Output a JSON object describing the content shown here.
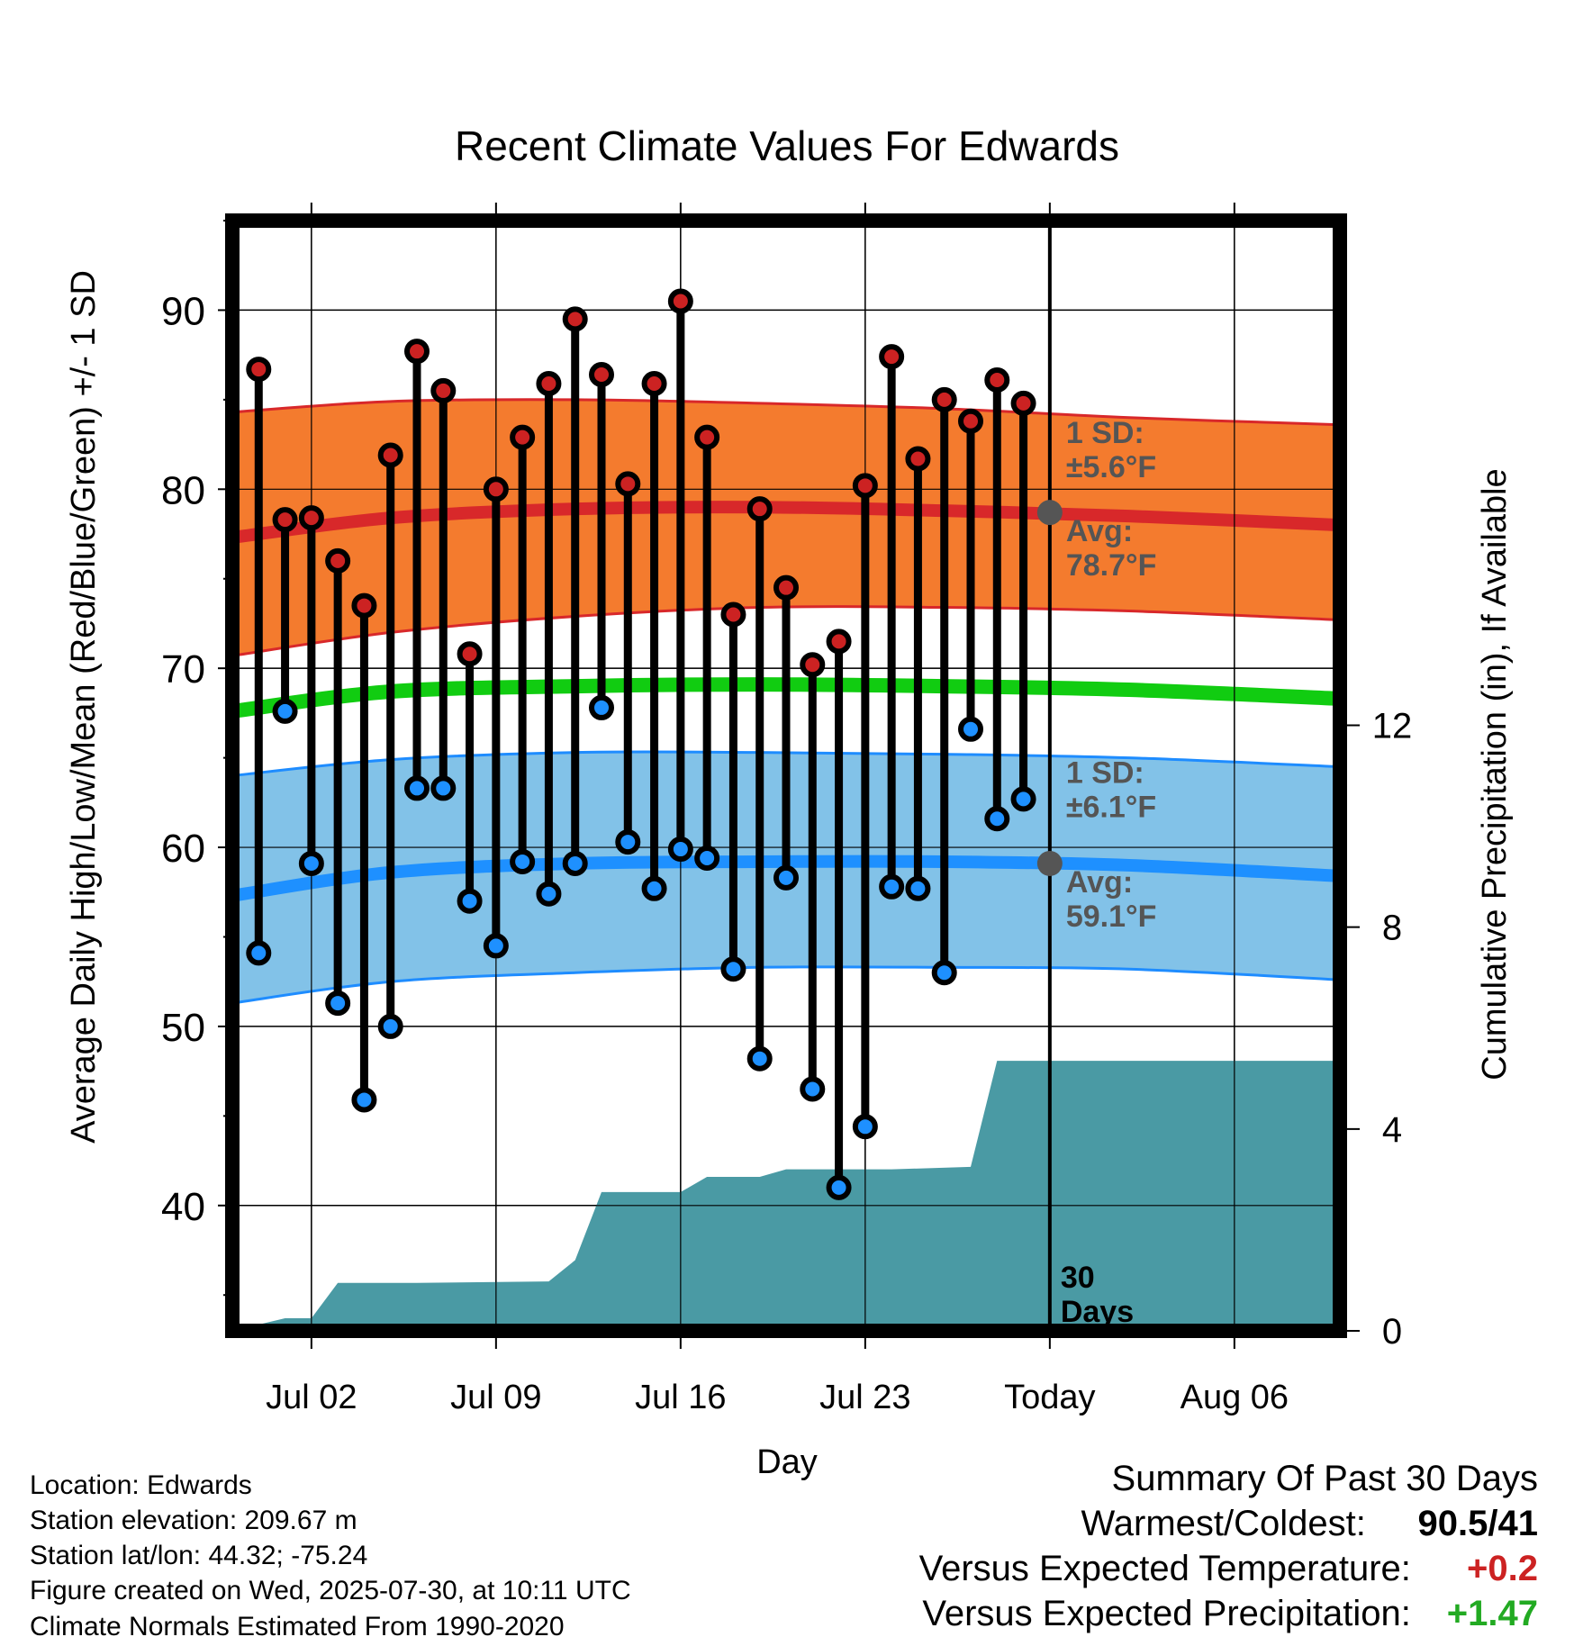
{
  "title": "Recent Climate Values For Edwards",
  "colors": {
    "high_marker": "#cc2222",
    "low_marker": "#1e90ff",
    "high_band": "#f47b2e",
    "high_band_edge": "#d8282a",
    "high_avg_line": "#d8282a",
    "low_band": "#82c2e8",
    "low_band_edge": "#1e8cff",
    "low_avg_line": "#1e90ff",
    "mean_line": "#11cc11",
    "precip_fill": "#4a9aa4",
    "annotation": "#555555",
    "positive_temp": "#cc2222",
    "positive_precip": "#22aa22"
  },
  "chart_data": {
    "type": "line",
    "xlabel": "Day",
    "ylabel": "Average Daily High/Low/Mean (Red/Blue/Green) +/- 1 SD",
    "y2label": "Cumulative Precipitation (in), If Available",
    "ylim": [
      33,
      95
    ],
    "y2lim": [
      0,
      22
    ],
    "xlim": [
      "2025-06-29",
      "2025-08-10"
    ],
    "grid": true,
    "x_ticks": [
      {
        "date": "2025-07-02",
        "label": "Jul 02"
      },
      {
        "date": "2025-07-09",
        "label": "Jul 09"
      },
      {
        "date": "2025-07-16",
        "label": "Jul 16"
      },
      {
        "date": "2025-07-23",
        "label": "Jul 23"
      },
      {
        "date": "2025-07-30",
        "label": "Today"
      },
      {
        "date": "2025-08-06",
        "label": "Aug 06"
      }
    ],
    "y_ticks": [
      40,
      50,
      60,
      70,
      80,
      90
    ],
    "y2_ticks": [
      0,
      4,
      8,
      12
    ],
    "today": "2025-07-30",
    "dates": [
      "2025-06-30",
      "2025-07-01",
      "2025-07-02",
      "2025-07-03",
      "2025-07-04",
      "2025-07-05",
      "2025-07-06",
      "2025-07-07",
      "2025-07-08",
      "2025-07-09",
      "2025-07-10",
      "2025-07-11",
      "2025-07-12",
      "2025-07-13",
      "2025-07-14",
      "2025-07-15",
      "2025-07-16",
      "2025-07-17",
      "2025-07-18",
      "2025-07-19",
      "2025-07-20",
      "2025-07-21",
      "2025-07-22",
      "2025-07-23",
      "2025-07-24",
      "2025-07-25",
      "2025-07-26",
      "2025-07-27",
      "2025-07-28",
      "2025-07-29"
    ],
    "series": [
      {
        "name": "High",
        "values": [
          86.7,
          78.3,
          78.4,
          76.0,
          73.5,
          81.9,
          87.7,
          85.5,
          70.8,
          80.0,
          82.9,
          85.9,
          89.5,
          86.4,
          80.3,
          85.9,
          90.5,
          82.9,
          73.0,
          78.9,
          74.5,
          70.2,
          71.5,
          80.2,
          87.4,
          81.7,
          85.0,
          83.8,
          86.1,
          84.8
        ]
      },
      {
        "name": "Low",
        "values": [
          54.1,
          67.6,
          59.1,
          51.3,
          45.9,
          50.0,
          63.3,
          63.3,
          57.0,
          54.5,
          59.2,
          57.4,
          59.1,
          67.8,
          60.3,
          57.7,
          59.9,
          59.4,
          53.2,
          48.2,
          58.3,
          46.5,
          41.0,
          44.4,
          57.8,
          57.7,
          53.0,
          66.6,
          61.6,
          62.7
        ]
      }
    ],
    "normals": {
      "dates": [
        "2025-06-29",
        "2025-07-05",
        "2025-07-12",
        "2025-07-19",
        "2025-07-26",
        "2025-08-02",
        "2025-08-10"
      ],
      "high_avg": [
        77.3,
        78.4,
        78.9,
        79.0,
        78.8,
        78.5,
        78.0
      ],
      "high_upper": [
        84.3,
        84.9,
        85.0,
        84.8,
        84.5,
        84.0,
        83.6
      ],
      "high_lower": [
        70.7,
        72.0,
        72.9,
        73.4,
        73.4,
        73.2,
        72.7
      ],
      "mean": [
        67.6,
        68.7,
        69.0,
        69.1,
        69.0,
        68.8,
        68.3
      ],
      "low_avg": [
        57.3,
        58.6,
        59.1,
        59.2,
        59.2,
        59.0,
        58.4
      ],
      "low_upper": [
        64.0,
        64.9,
        65.3,
        65.3,
        65.2,
        65.0,
        64.5
      ],
      "low_lower": [
        51.3,
        52.5,
        53.0,
        53.3,
        53.3,
        53.2,
        52.6
      ]
    },
    "precip": {
      "dates": [
        "2025-06-29",
        "2025-07-01",
        "2025-07-02",
        "2025-07-03",
        "2025-07-06",
        "2025-07-11",
        "2025-07-12",
        "2025-07-13",
        "2025-07-16",
        "2025-07-17",
        "2025-07-19",
        "2025-07-20",
        "2025-07-24",
        "2025-07-27",
        "2025-07-28",
        "2025-08-10"
      ],
      "values": [
        0.0,
        0.25,
        0.25,
        0.95,
        0.95,
        0.98,
        1.4,
        2.75,
        2.75,
        3.05,
        3.05,
        3.2,
        3.2,
        3.25,
        5.35,
        5.35
      ]
    },
    "annotations": {
      "high_sd_label": "1 SD:",
      "high_sd_value": "±5.6°F",
      "high_avg_label": "Avg:",
      "high_avg_value": "78.7°F",
      "high_avg_marker": 78.7,
      "low_sd_label": "1 SD:",
      "low_sd_value": "±6.1°F",
      "low_avg_label": "Avg:",
      "low_avg_value": "59.1°F",
      "low_avg_marker": 59.1,
      "days_label_1": "30",
      "days_label_2": "Days"
    }
  },
  "footer": {
    "location": "Location: Edwards",
    "elevation": "Station elevation: 209.67 m",
    "latlon": "Station lat/lon: 44.32; -75.24",
    "created": "Figure created on Wed, 2025-07-30, at 10:11 UTC",
    "normals": "Climate Normals Estimated From 1990-2020"
  },
  "summary": {
    "title": "Summary Of Past 30 Days",
    "warmest_label": "Warmest/Coldest:",
    "warmest_value": "90.5/41",
    "temp_label": "Versus Expected Temperature:",
    "temp_value": "+0.2",
    "precip_label": "Versus Expected Precipitation:",
    "precip_value": "+1.47"
  }
}
